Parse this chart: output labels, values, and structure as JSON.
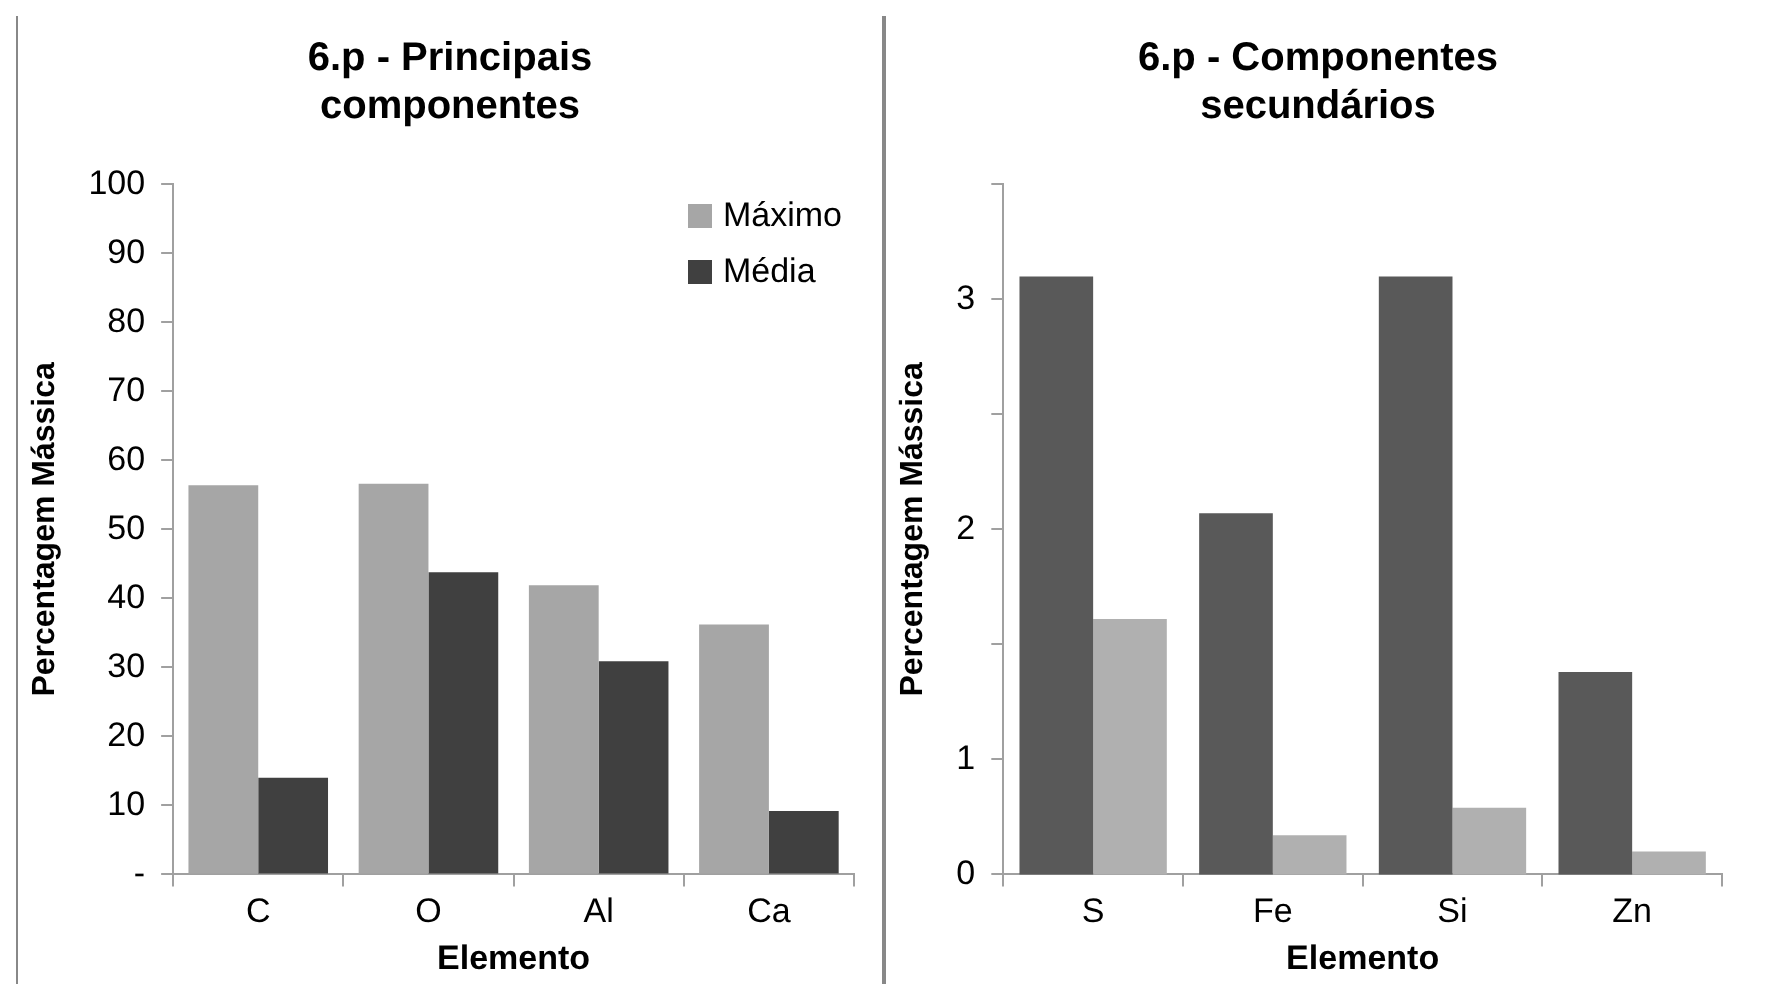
{
  "chart_data": [
    {
      "type": "bar",
      "title": "6.p - Principais componentes",
      "xlabel": "Elemento",
      "ylabel": "Percentagem Mássica",
      "categories": [
        "C",
        "O",
        "Al",
        "Ca"
      ],
      "series": [
        {
          "name": "Máximo",
          "color": "#a6a6a6",
          "values": [
            56.4,
            56.6,
            41.9,
            36.2
          ]
        },
        {
          "name": "Média",
          "color": "#404040",
          "values": [
            14.0,
            43.8,
            30.9,
            9.2
          ]
        }
      ],
      "ylim": [
        0,
        100
      ],
      "yticks": [
        {
          "value": 0,
          "label": "-"
        },
        10,
        20,
        30,
        40,
        50,
        60,
        70,
        80,
        90,
        100
      ],
      "grid": false,
      "legend": "top right"
    },
    {
      "type": "bar",
      "title": "6.p - Componentes secundários",
      "xlabel": "Elemento",
      "ylabel": "Percentagem Mássica",
      "categories": [
        "S",
        "Fe",
        "Si",
        "Zn"
      ],
      "series": [
        {
          "color": "#595959",
          "values": [
            3.1,
            2.07,
            3.1,
            1.38
          ]
        },
        {
          "color": "#b0b0b0",
          "values": [
            1.61,
            0.67,
            0.79,
            0.6
          ]
        }
      ],
      "ylim": [
        0.5,
        3.5
      ],
      "yticks": [
        {
          "value": 0.5,
          "label": "0"
        },
        1,
        {
          "value": 1.5,
          "label": null
        },
        2,
        {
          "value": 2.5,
          "label": null
        },
        3,
        {
          "value": 3.5,
          "label": null
        }
      ],
      "grid": false,
      "legend": false
    }
  ]
}
